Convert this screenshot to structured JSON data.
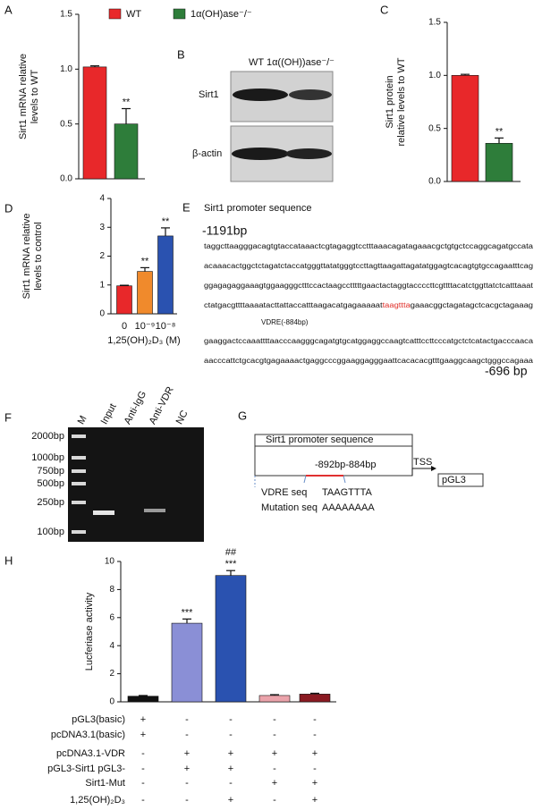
{
  "chart_data": [
    {
      "type": "bar",
      "panel": "A",
      "ylabel": [
        "Sirt1  mRNA relative",
        "levels to WT"
      ],
      "ylim": [
        0,
        1.5
      ],
      "yticks": [
        {
          "value": 0,
          "label": "0.0"
        },
        {
          "value": 0.5,
          "label": "0.5"
        },
        {
          "value": 1,
          "label": "1.0"
        },
        {
          "value": 1.5,
          "label": "1.5"
        }
      ],
      "series": [
        {
          "name": "WT",
          "color": "#e8282a",
          "values": [
            1.02
          ],
          "errors": [
            0.01
          ],
          "annotations": [
            null
          ]
        },
        {
          "name": "1α(OH)ase⁻/⁻",
          "color": "#2e7d3a",
          "values": [
            0.5
          ],
          "errors": [
            0.14
          ],
          "annotations": [
            "**"
          ]
        }
      ]
    },
    {
      "type": "bar",
      "panel": "C",
      "ylabel": [
        "Sirt1 protein",
        "relative levels to WT"
      ],
      "ylim": [
        0,
        1.5
      ],
      "yticks": [
        {
          "value": 0,
          "label": "0.0"
        },
        {
          "value": 0.5,
          "label": "0.5"
        },
        {
          "value": 1,
          "label": "1.0"
        },
        {
          "value": 1.5,
          "label": "1.5"
        }
      ],
      "values": [
        1.0,
        0.36
      ],
      "errors": [
        0.01,
        0.05
      ],
      "colors": [
        "#e8282a",
        "#2e7d3a"
      ],
      "annotations": [
        null,
        "**"
      ]
    },
    {
      "type": "bar",
      "panel": "D",
      "ylabel": [
        "Sirt1 mRNA relative",
        "levels to control"
      ],
      "xlabel": "1,25(OH)₂D₃ (M)",
      "categories": [
        "0",
        "10⁻⁹",
        "10⁻⁸"
      ],
      "ylim": [
        0,
        4
      ],
      "yticks": [
        0,
        1,
        2,
        3,
        4
      ],
      "values": [
        0.97,
        1.47,
        2.7
      ],
      "errors": [
        0.02,
        0.13,
        0.28
      ],
      "colors": [
        "#e8282a",
        "#f08a2c",
        "#2a52b0"
      ],
      "annotations": [
        null,
        "**",
        "**"
      ]
    },
    {
      "type": "bar",
      "panel": "H",
      "ylabel": [
        "Lucferiase activity"
      ],
      "ylim": [
        0,
        10
      ],
      "yticks": [
        0,
        2,
        4,
        6,
        8,
        10
      ],
      "values": [
        0.4,
        5.6,
        9.0,
        0.45,
        0.55
      ],
      "errors": [
        0.05,
        0.3,
        0.35,
        0.06,
        0.06
      ],
      "colors": [
        "#111111",
        "#8a8fd6",
        "#2a52b0",
        "#eba3ab",
        "#8b1a22"
      ],
      "annotations": [
        null,
        "***",
        "***",
        null,
        null
      ],
      "annotations2": [
        null,
        null,
        "##",
        null,
        null
      ],
      "conditions": [
        {
          "label": "pGL3(basic)",
          "signs": [
            "+",
            "-",
            "-",
            "-",
            "-"
          ]
        },
        {
          "label": "pcDNA3.1(basic)",
          "signs": [
            "+",
            "-",
            "-",
            "-",
            "-"
          ]
        },
        {
          "label": "pcDNA3.1-VDR",
          "signs": [
            "-",
            "+",
            "+",
            "+",
            "+"
          ]
        },
        {
          "label": "pGL3-Sirt1 pGL3-",
          "signs": [
            "-",
            "+",
            "+",
            "-",
            "-"
          ]
        },
        {
          "label": "Sirt1-Mut",
          "signs": [
            "-",
            "-",
            "-",
            "+",
            "+"
          ]
        },
        {
          "label": "1,25(OH)₂D₃",
          "signs": [
            "-",
            "-",
            "+",
            "-",
            "+"
          ]
        }
      ]
    }
  ],
  "blot": {
    "panel": "B",
    "header": "WT 1α((OH))ase⁻/⁻",
    "rows": [
      "Sirt1",
      "β-actin"
    ]
  },
  "sequence": {
    "panel": "E",
    "title": "Sirt1 promoter sequence",
    "start": "-1191bp",
    "highlight_color": "#e0302a",
    "lines": [
      [
        "taggcttaagggacagtgtaccataaactcgtagaggtcctttaaacagatagaaacgctgtgctccaggcagatgccata"
      ],
      [
        "acaaacactggctctagatctaccatgggttatatgggtccttagttaagattagatatggagtcacagtgtgccagaatttcag"
      ],
      [
        "ggagagaggaaagtggaagggctttccactaagcctttttgaactactaggtaccccttcgttttacatctggttatctcatttaaat"
      ],
      [
        "ctatgacgttttaaaatacttattaccatttaagacatgagaaaaat",
        "taagttta",
        "gaaacggctagatagctcacgctagaaag"
      ],
      [
        "gaaggactccaaattttaacccaagggcagatgtgcatggaggccaagtcatttccttcccatgctctcatactgacccaaca"
      ],
      [
        "aacccattctgcacgtgagaaaactgaggcccggaaggagggaattcacacacgtttgaaggcaagctgggccagaaa"
      ]
    ],
    "site": "VDRE(-884bp)",
    "end": "-696 bp"
  },
  "gel": {
    "panel": "F",
    "lanes": [
      "M",
      "Input",
      "Anti-IgG",
      "Anti-VDR",
      "NC"
    ],
    "markers": [
      "2000bp",
      "1000bp",
      "750bp",
      "500bp",
      "250bp",
      "100bp"
    ]
  },
  "diagram": {
    "panel": "G",
    "title": "Sirt1 promoter sequence",
    "site": "-892bp-884bp",
    "tss": "TSS",
    "vector": "pGL3",
    "rows": [
      [
        "VDRE seq",
        "TAAGTTTA"
      ],
      [
        "Mutation seq",
        "AAAAAAAA"
      ]
    ]
  }
}
